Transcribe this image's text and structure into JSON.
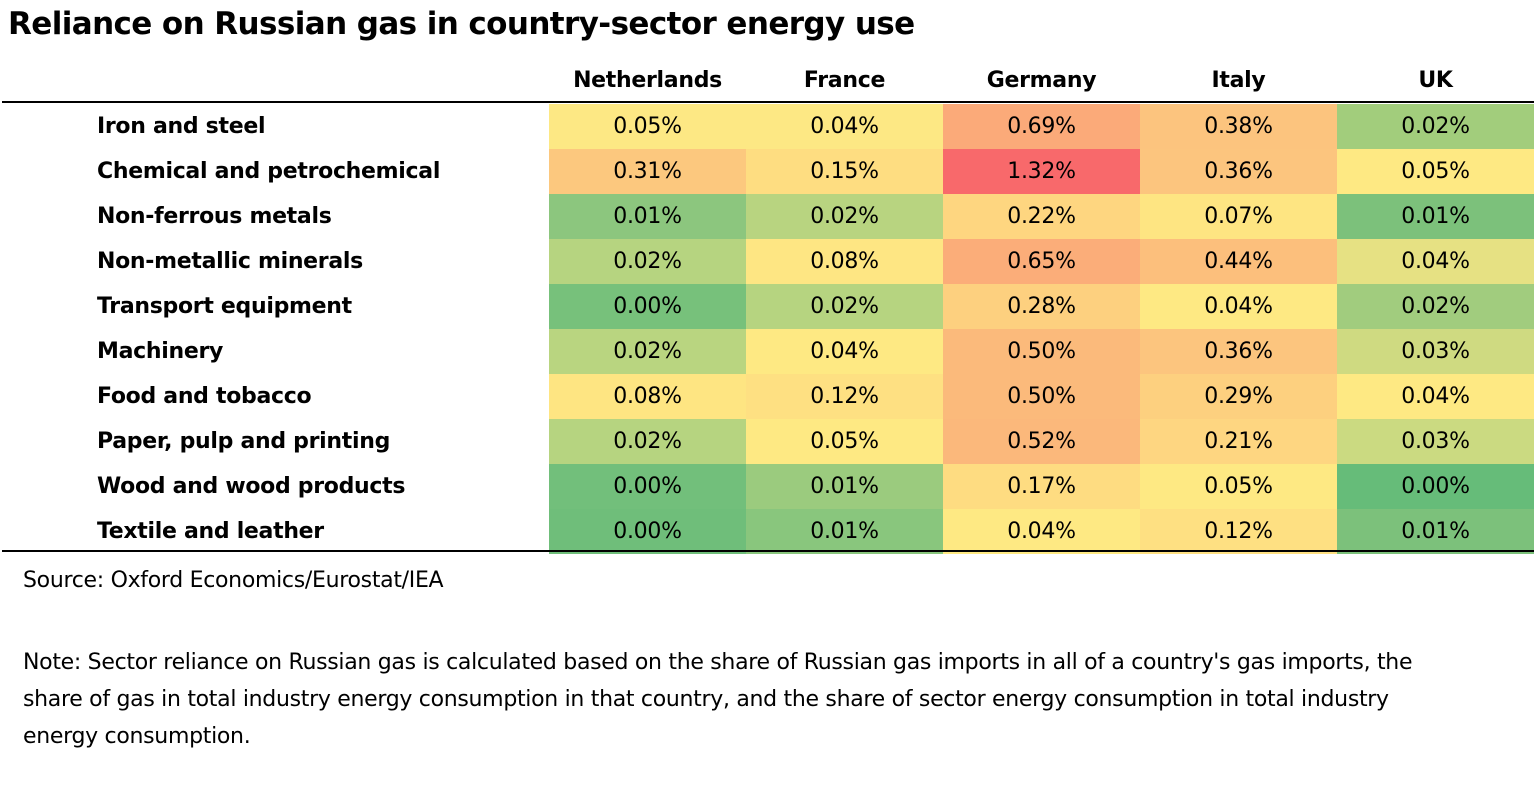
{
  "chart_data": {
    "type": "table",
    "title": "Reliance on Russian gas in country-sector energy use",
    "columns": [
      "Netherlands",
      "France",
      "Germany",
      "Italy",
      "UK"
    ],
    "rows": [
      {
        "label": "Iron and steel",
        "values": [
          "0.05%",
          "0.04%",
          "0.69%",
          "0.38%",
          "0.02%"
        ],
        "colors": [
          "#fde884",
          "#fde884",
          "#fbaa79",
          "#fcc47e",
          "#a2cd7c"
        ]
      },
      {
        "label": "Chemical and petrochemical",
        "values": [
          "0.31%",
          "0.15%",
          "1.32%",
          "0.36%",
          "0.05%"
        ],
        "colors": [
          "#fcc87e",
          "#fedd81",
          "#f8696b",
          "#fcc57e",
          "#fee983"
        ]
      },
      {
        "label": "Non-ferrous metals",
        "values": [
          "0.01%",
          "0.02%",
          "0.22%",
          "0.07%",
          "0.01%"
        ],
        "colors": [
          "#8cc67e",
          "#b8d480",
          "#fed680",
          "#fee582",
          "#7cc17b"
        ]
      },
      {
        "label": "Non-metallic minerals",
        "values": [
          "0.02%",
          "0.08%",
          "0.65%",
          "0.44%",
          "0.04%"
        ],
        "colors": [
          "#b6d480",
          "#fee683",
          "#fbad79",
          "#fcbf7c",
          "#e6e183"
        ]
      },
      {
        "label": "Transport equipment",
        "values": [
          "0.00%",
          "0.02%",
          "0.28%",
          "0.04%",
          "0.02%"
        ],
        "colors": [
          "#77c17b",
          "#b6d480",
          "#fdd07f",
          "#fee983",
          "#a1cc7e"
        ]
      },
      {
        "label": "Machinery",
        "values": [
          "0.02%",
          "0.04%",
          "0.50%",
          "0.36%",
          "0.03%"
        ],
        "colors": [
          "#b9d580",
          "#fee983",
          "#fbba7b",
          "#fcc57e",
          "#cfda81"
        ]
      },
      {
        "label": "Food and tobacco",
        "values": [
          "0.08%",
          "0.12%",
          "0.50%",
          "0.29%",
          "0.04%"
        ],
        "colors": [
          "#fee582",
          "#fee082",
          "#fbba7b",
          "#fdd07f",
          "#fee983"
        ]
      },
      {
        "label": "Paper, pulp and printing",
        "values": [
          "0.02%",
          "0.05%",
          "0.52%",
          "0.21%",
          "0.03%"
        ],
        "colors": [
          "#b6d480",
          "#fee983",
          "#fbb87b",
          "#fed681",
          "#cbda81"
        ]
      },
      {
        "label": "Wood and wood products",
        "values": [
          "0.00%",
          "0.01%",
          "0.17%",
          "0.05%",
          "0.00%"
        ],
        "colors": [
          "#72bf7b",
          "#9bcb7e",
          "#fedc81",
          "#fee983",
          "#66bc79"
        ]
      },
      {
        "label": "Textile and leather",
        "values": [
          "0.00%",
          "0.01%",
          "0.04%",
          "0.12%",
          "0.01%"
        ],
        "colors": [
          "#6fbe7a",
          "#89c67d",
          "#fee983",
          "#fee082",
          "#7cc17b"
        ]
      }
    ]
  },
  "footer": {
    "source": "Source: Oxford Economics/Eurostat/IEA",
    "note": "Note: Sector reliance on Russian gas is calculated based on the share of Russian gas imports in all of a country's gas imports, the share of gas in total industry energy consumption in that country, and the share of sector energy consumption in total industry energy consumption."
  }
}
